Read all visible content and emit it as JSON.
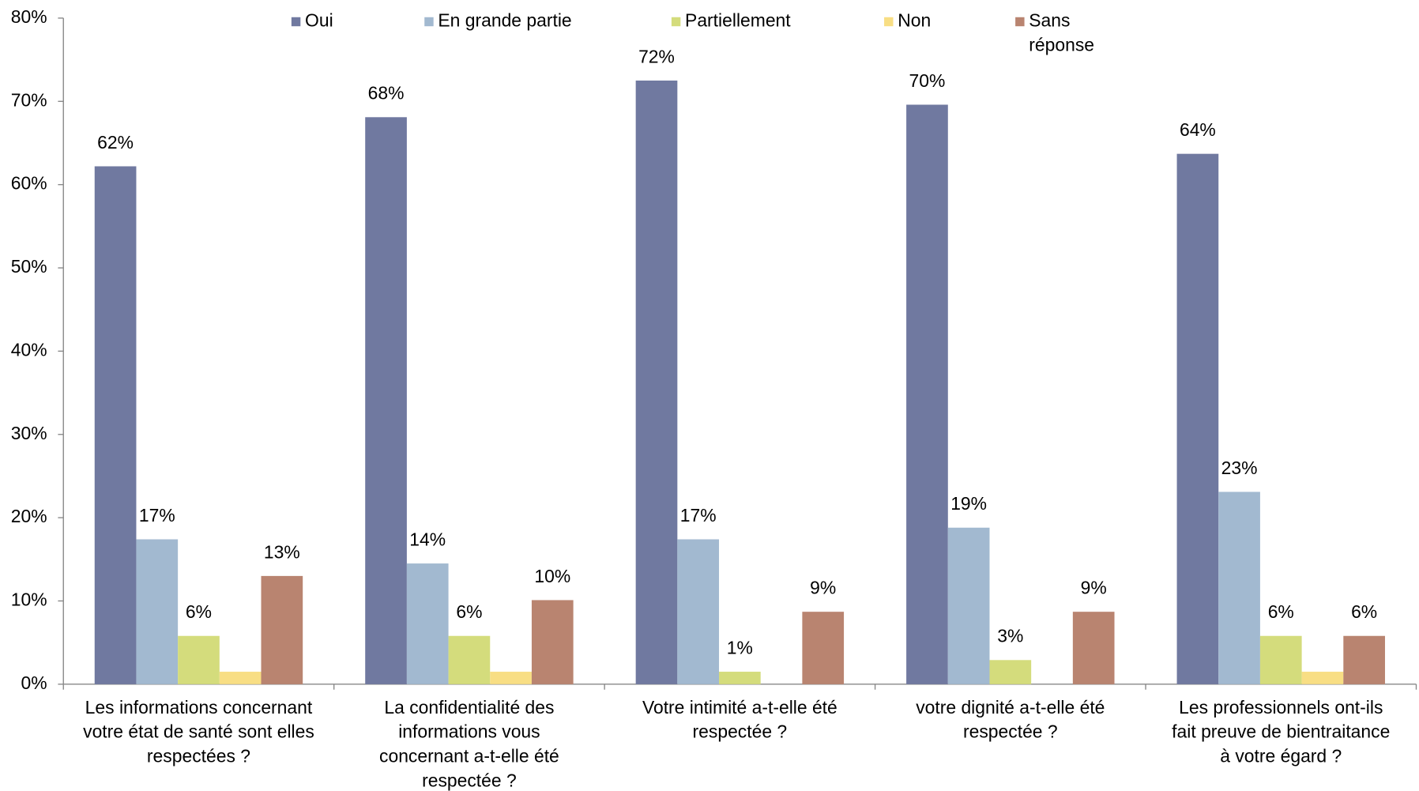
{
  "chart_data": {
    "type": "bar",
    "categories": [
      [
        "Les informations concernant",
        "votre état de santé sont elles",
        "respectées ?"
      ],
      [
        "La confidentialité des",
        "informations vous",
        "concernant a-t-elle été",
        "respectée ?"
      ],
      [
        "Votre intimité a-t-elle été",
        "respectée ?"
      ],
      [
        "votre dignité a-t-elle été",
        "respectée ?"
      ],
      [
        "Les professionnels ont-ils",
        "fait preuve de bientraitance",
        "à votre égard ?"
      ]
    ],
    "series": [
      {
        "name": "Oui",
        "color": "#7079a0",
        "values": [
          62.2,
          68.1,
          72.5,
          69.6,
          63.7
        ],
        "value_labels": [
          "62%",
          "68%",
          "72%",
          "70%",
          "64%"
        ]
      },
      {
        "name": "En grande partie",
        "color": "#a2b9d0",
        "values": [
          17.4,
          14.5,
          17.4,
          18.8,
          23.1
        ],
        "value_labels": [
          "17%",
          "14%",
          "17%",
          "19%",
          "23%"
        ]
      },
      {
        "name": "Partiellement",
        "color": "#d4dc7c",
        "values": [
          5.8,
          5.8,
          1.5,
          2.9,
          5.8
        ],
        "value_labels": [
          "6%",
          "6%",
          "1%",
          "3%",
          "6%"
        ]
      },
      {
        "name": "Non",
        "color": "#f8de84",
        "values": [
          1.5,
          1.5,
          0,
          0,
          1.5
        ]
      },
      {
        "name": "Sans réponse",
        "color": "#b98470",
        "values": [
          13.0,
          10.1,
          8.7,
          8.7,
          5.8
        ],
        "value_labels": [
          "13%",
          "10%",
          "9%",
          "9%",
          "6%"
        ]
      }
    ],
    "ylim": [
      0,
      80
    ],
    "yticks": [
      {
        "value": 0,
        "label": "0%"
      },
      {
        "value": 10,
        "label": "10%"
      },
      {
        "value": 20,
        "label": "20%"
      },
      {
        "value": 30,
        "label": "30%"
      },
      {
        "value": 40,
        "label": "40%"
      },
      {
        "value": 50,
        "label": "50%"
      },
      {
        "value": 60,
        "label": "60%"
      },
      {
        "value": 70,
        "label": "70%"
      },
      {
        "value": 80,
        "label": "80%"
      }
    ],
    "grid": false,
    "legend": "top"
  }
}
